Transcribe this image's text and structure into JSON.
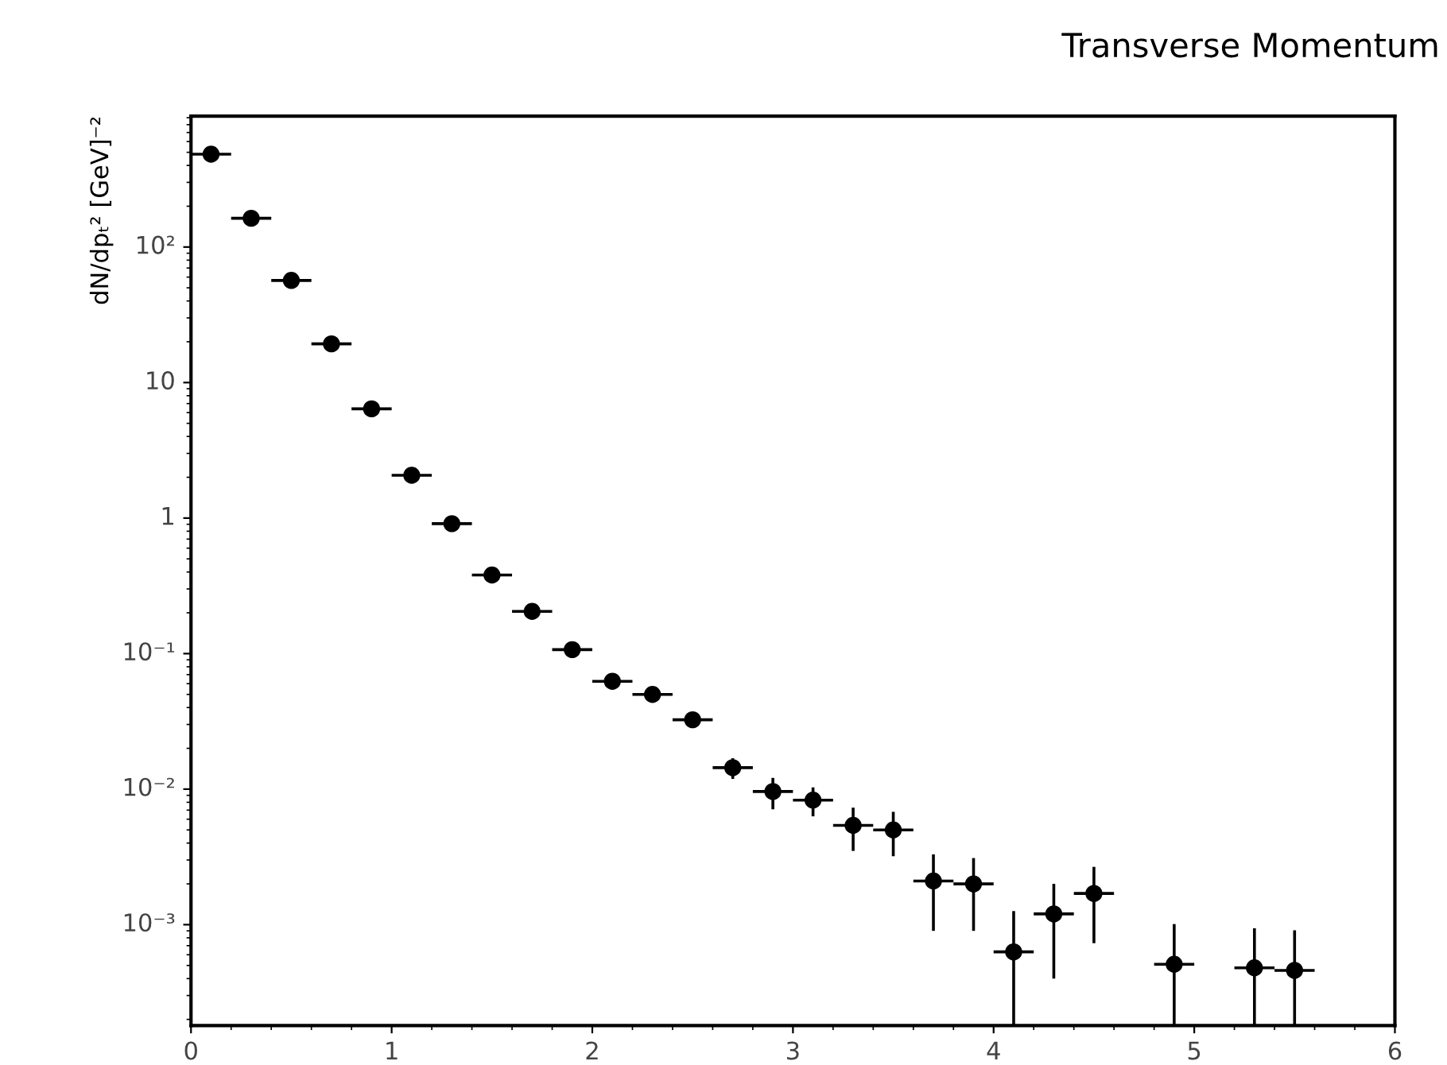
{
  "chart_data": {
    "type": "scatter",
    "title": "Transverse Momentum",
    "ylabel": "dN/dpₜ² [GeV]⁻²",
    "x": [
      0.1,
      0.3,
      0.5,
      0.7,
      0.9,
      1.1,
      1.3,
      1.5,
      1.7,
      1.9,
      2.1,
      2.3,
      2.5,
      2.7,
      2.9,
      3.1,
      3.3,
      3.5,
      3.7,
      3.9,
      4.1,
      4.3,
      4.5,
      4.9,
      5.3,
      5.5
    ],
    "series": [
      {
        "color": "#000000",
        "values": [
          484,
          163,
          56.7,
          19.3,
          6.4,
          2.07,
          0.91,
          0.38,
          0.205,
          0.107,
          0.0625,
          0.05,
          0.0325,
          0.0144,
          0.0096,
          0.0083,
          0.0054,
          0.005,
          0.0021,
          0.002,
          0.00063,
          0.0012,
          0.0017,
          0.00051,
          0.00048,
          0.00046
        ],
        "errors": [
          null,
          null,
          null,
          null,
          null,
          null,
          null,
          null,
          null,
          null,
          null,
          null,
          null,
          0.0025,
          0.0025,
          0.002,
          0.0019,
          0.0018,
          0.0012,
          0.0011,
          [
            0.00018,
            0.00126
          ],
          0.0008,
          0.00097,
          [
            0.00018,
            0.00101
          ],
          [
            0.00018,
            0.00094
          ],
          [
            0.00018,
            0.00091
          ]
        ],
        "xerrors": [
          0.1,
          0.1,
          0.1,
          0.1,
          0.1,
          0.1,
          0.1,
          0.1,
          0.1,
          0.1,
          0.1,
          0.1,
          0.1,
          0.1,
          0.1,
          0.1,
          0.1,
          0.1,
          0.1,
          0.1,
          0.1,
          0.1,
          0.1,
          0.1,
          0.1,
          0.1
        ]
      }
    ],
    "log": "y",
    "xlim": [
      0,
      6
    ],
    "xticks": [
      0,
      1,
      2,
      3,
      4,
      5,
      6
    ],
    "ylim": [
      0.00018,
      925
    ],
    "yticks": [
      {
        "value": 0.001,
        "label": "10⁻³"
      },
      {
        "value": 0.01,
        "label": "10⁻²"
      },
      {
        "value": 0.1,
        "label": "10⁻¹"
      },
      1,
      10,
      {
        "value": 100,
        "label": "10²"
      }
    ],
    "marker": "circle",
    "grid": false,
    "legend": false
  }
}
